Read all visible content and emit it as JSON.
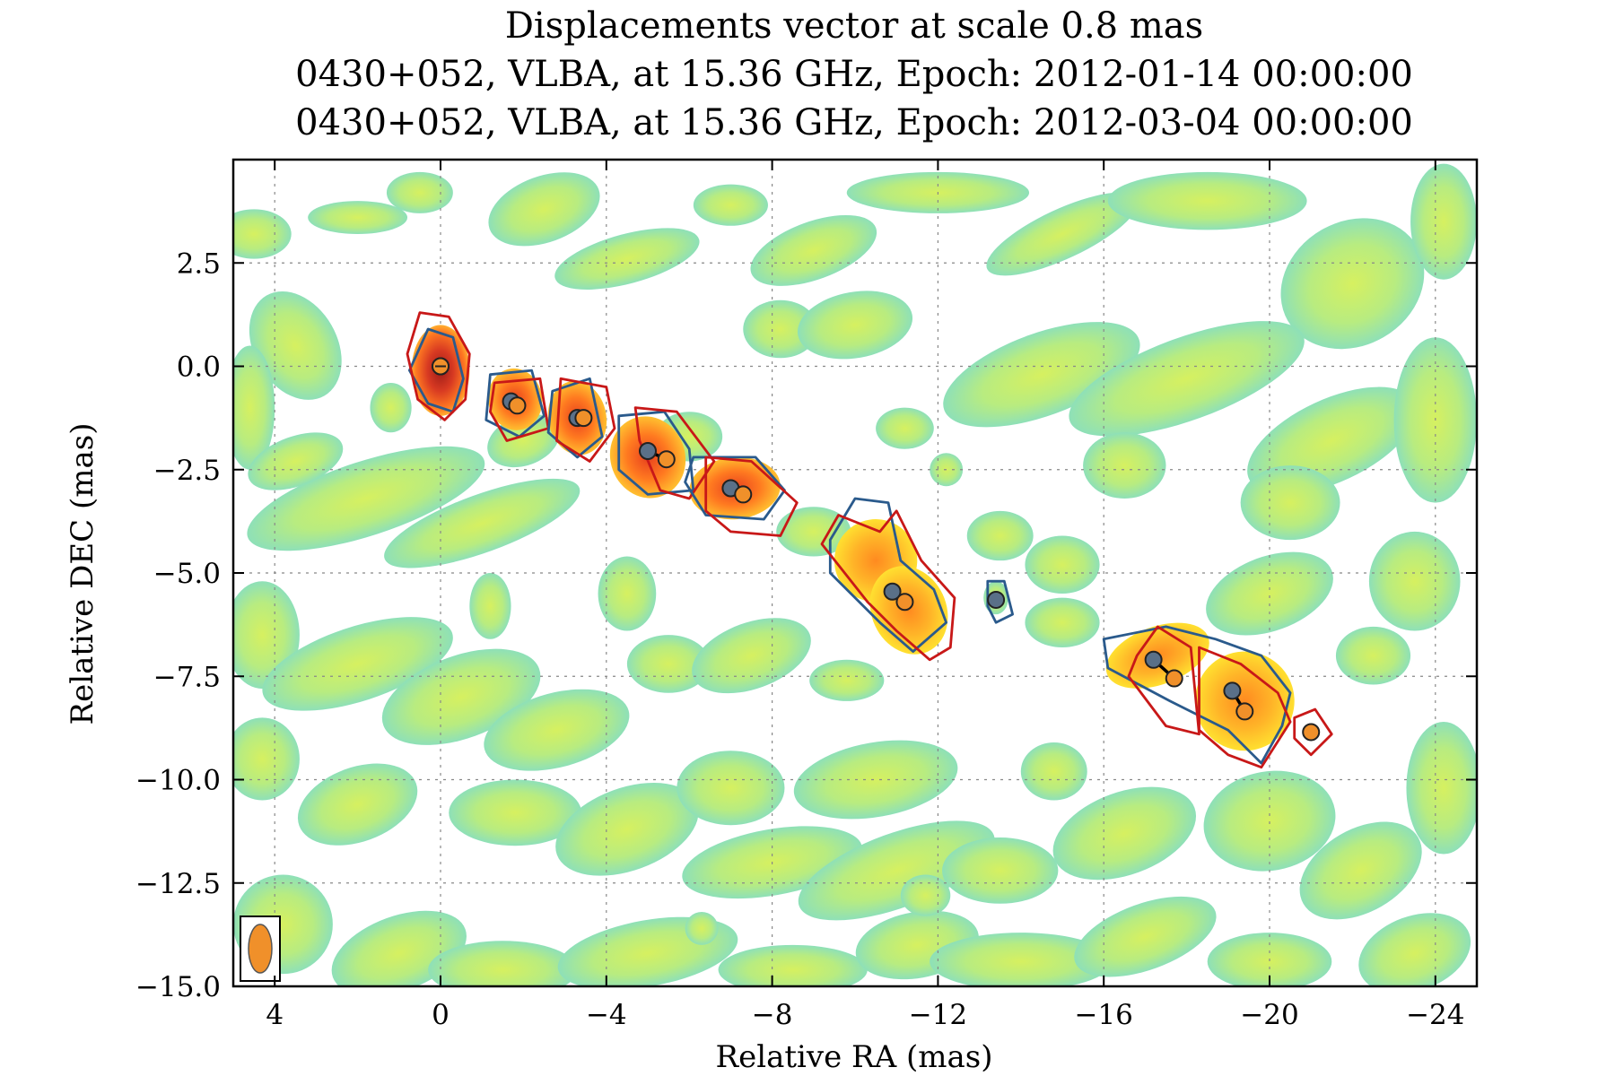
{
  "chart_data": {
    "type": "scatter",
    "title": "Displacements vector at scale 0.8 mas",
    "subtitle_lines": [
      "0430+052, VLBA, at 15.36 GHz, Epoch: 2012-01-14 00:00:00",
      "0430+052, VLBA, at 15.36 GHz, Epoch: 2012-03-04 00:00:00"
    ],
    "xlabel": "Relative RA (mas)",
    "ylabel": "Relative DEC (mas)",
    "xlim": [
      5,
      -25
    ],
    "ylim": [
      -15,
      5
    ],
    "x_ticks": [
      4,
      0,
      -4,
      -8,
      -12,
      -16,
      -20,
      -24
    ],
    "x_tick_labels": [
      "4",
      "0",
      "−4",
      "−8",
      "−12",
      "−16",
      "−20",
      "−24"
    ],
    "y_ticks": [
      2.5,
      0.0,
      -2.5,
      -5.0,
      -7.5,
      -10.0,
      -12.5,
      -15.0
    ],
    "y_tick_labels": [
      "2.5",
      "0.0",
      "−2.5",
      "−5.0",
      "−7.5",
      "−10.0",
      "−12.5",
      "−15.0"
    ],
    "grid": true,
    "colors": {
      "epoch1_marker": "#5a7088",
      "epoch2_marker": "#f0902a",
      "epoch1_contour": "#2a5a8c",
      "epoch2_contour": "#c81818",
      "background_noise": "#b8ee88",
      "component_core": "#c83020",
      "component_mid": "#ff8a20",
      "component_outer": "#ffd830"
    },
    "series": [
      {
        "epoch": "2012-01-14",
        "points": [
          {
            "x": 0.0,
            "y": 0.0
          },
          {
            "x": -1.7,
            "y": -0.85
          },
          {
            "x": -3.3,
            "y": -1.25
          },
          {
            "x": -5.0,
            "y": -2.05
          },
          {
            "x": -7.0,
            "y": -2.95
          },
          {
            "x": -10.9,
            "y": -5.45
          },
          {
            "x": -13.4,
            "y": -5.65
          },
          {
            "x": -17.2,
            "y": -7.1
          },
          {
            "x": -19.1,
            "y": -7.85
          }
        ]
      },
      {
        "epoch": "2012-03-04",
        "points": [
          {
            "x": 0.0,
            "y": 0.0
          },
          {
            "x": -1.85,
            "y": -0.95
          },
          {
            "x": -3.45,
            "y": -1.25
          },
          {
            "x": -5.45,
            "y": -2.25
          },
          {
            "x": -7.3,
            "y": -3.1
          },
          {
            "x": -11.2,
            "y": -5.7
          },
          {
            "x": -17.7,
            "y": -7.55
          },
          {
            "x": -19.4,
            "y": -8.35
          },
          {
            "x": -21.0,
            "y": -8.85
          }
        ]
      }
    ],
    "displacement_vectors": [
      {
        "from": [
          -1.7,
          -0.85
        ],
        "to": [
          -1.85,
          -0.95
        ]
      },
      {
        "from": [
          -3.3,
          -1.25
        ],
        "to": [
          -3.45,
          -1.25
        ]
      },
      {
        "from": [
          -5.0,
          -2.05
        ],
        "to": [
          -5.45,
          -2.25
        ]
      },
      {
        "from": [
          -7.0,
          -2.95
        ],
        "to": [
          -7.3,
          -3.1
        ]
      },
      {
        "from": [
          -10.9,
          -5.45
        ],
        "to": [
          -11.2,
          -5.7
        ]
      },
      {
        "from": [
          -17.2,
          -7.1
        ],
        "to": [
          -17.7,
          -7.55
        ]
      },
      {
        "from": [
          -19.1,
          -7.85
        ],
        "to": [
          -19.4,
          -8.35
        ]
      }
    ]
  }
}
